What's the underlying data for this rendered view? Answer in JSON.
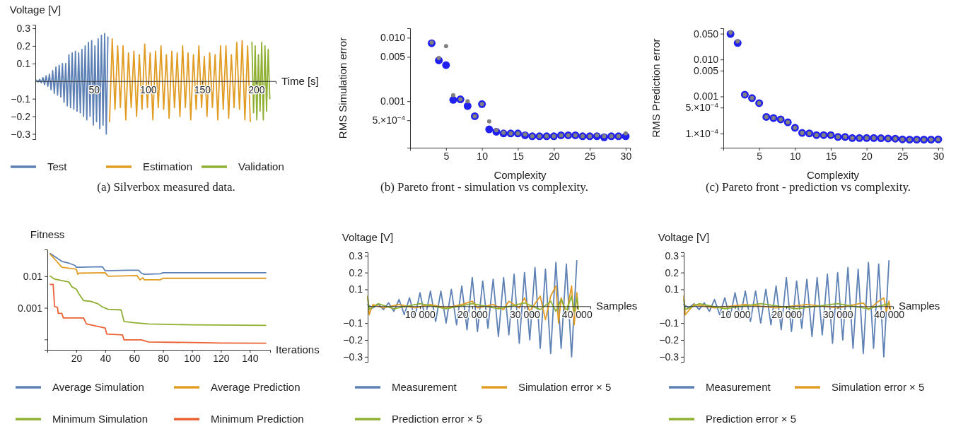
{
  "chart_data": [
    {
      "type": "line",
      "title": "(a) Silverbox measured data.",
      "xlabel": "Time [s]",
      "ylabel": "Voltage [V]",
      "xlim": [
        -4,
        218
      ],
      "xticks": [
        50,
        100,
        150,
        200
      ],
      "ylim": [
        -0.33,
        0.32
      ],
      "yticks": [
        {
          "value": -0.3,
          "label": "−0.3"
        },
        {
          "value": -0.2,
          "label": "−0.2"
        },
        {
          "value": -0.1,
          "label": "−0.1"
        },
        0.1,
        0.2,
        0.3
      ],
      "legend": "bottom",
      "grid": false,
      "series": [
        {
          "name": "Test",
          "color": "#5e81b5",
          "x": [
            -3,
            -1.5,
            0,
            1.5,
            3,
            4.5,
            6,
            7.5,
            9,
            10.5,
            12,
            13.5,
            15,
            16.5,
            18,
            19.5,
            21,
            22.5,
            24,
            25.5,
            27,
            28.5,
            30,
            31.5,
            33,
            34.5,
            36,
            37.5,
            39,
            40.5,
            42,
            43.5,
            45,
            46.5,
            48,
            49.5,
            51,
            52.5,
            54,
            55.5,
            57,
            58.5,
            60,
            61.5,
            63
          ],
          "values": [
            0.005,
            -0.005,
            0.01,
            -0.01,
            0.02,
            -0.02,
            0.03,
            -0.03,
            0.04,
            -0.05,
            0.06,
            -0.07,
            0.08,
            -0.08,
            0.09,
            -0.09,
            0.1,
            -0.12,
            0.1,
            -0.14,
            0.15,
            -0.15,
            0.16,
            -0.16,
            0.17,
            -0.17,
            0.16,
            -0.18,
            0.18,
            -0.2,
            0.2,
            -0.22,
            0.22,
            -0.2,
            0.23,
            -0.25,
            0.2,
            -0.23,
            0.24,
            -0.27,
            0.26,
            -0.25,
            0.27,
            -0.3,
            0.25
          ]
        },
        {
          "name": "Estimation",
          "color": "#e19c24",
          "x": [
            64.5,
            67,
            69.5,
            72,
            74.5,
            77,
            79.5,
            82,
            84.5,
            87,
            89.5,
            92,
            94.5,
            97,
            99.5,
            102,
            104.5,
            107,
            109.5,
            112,
            114.5,
            117,
            119.5,
            122,
            124.5,
            127,
            129.5,
            132,
            134.5,
            137,
            139.5,
            142,
            144.5,
            147,
            149.5,
            152,
            154.5,
            157,
            159.5,
            162,
            164.5,
            167,
            169.5,
            172,
            174.5,
            177,
            179.5,
            182,
            184.5,
            187,
            189.5,
            192,
            194.5
          ],
          "values": [
            -0.23,
            0.24,
            -0.16,
            0.2,
            -0.15,
            0.2,
            -0.22,
            0.16,
            -0.15,
            0.17,
            -0.2,
            0.15,
            -0.16,
            0.21,
            -0.15,
            0.16,
            -0.22,
            0.17,
            -0.15,
            0.2,
            -0.16,
            0.15,
            -0.21,
            0.17,
            -0.15,
            0.16,
            -0.2,
            0.2,
            -0.15,
            0.16,
            -0.22,
            0.15,
            -0.16,
            0.2,
            -0.15,
            0.14,
            -0.2,
            0.16,
            -0.15,
            0.15,
            -0.22,
            0.2,
            -0.16,
            0.2,
            -0.21,
            0.15,
            -0.15,
            0.22,
            -0.16,
            0.23,
            -0.22,
            0.2,
            -0.23
          ]
        },
        {
          "name": "Validation",
          "color": "#8fb032",
          "x": [
            196,
            197.5,
            199,
            200.5,
            202,
            203.5,
            205,
            206.5,
            208,
            209.5,
            211,
            212.5
          ],
          "values": [
            0.22,
            -0.18,
            0.2,
            -0.22,
            0.15,
            -0.17,
            0.22,
            -0.22,
            0.2,
            -0.17,
            0.18,
            -0.1
          ]
        }
      ]
    },
    {
      "type": "scatter",
      "title": "(b) Pareto front - simulation vs complexity.",
      "xlabel": "Complexity",
      "ylabel": "RMS Simulation error",
      "log": "y",
      "marker": "circle",
      "xlim": [
        0,
        30.6
      ],
      "xticks": [
        5,
        10,
        15,
        20,
        25,
        30
      ],
      "ylim": [
        0.000185,
        0.0141
      ],
      "yticks": [
        {
          "value": 0.01,
          "label": "0.010"
        },
        0.005,
        0.001,
        {
          "value": 0.0005,
          "label": "5.×10$^{−4}$"
        }
      ],
      "grid": false,
      "x": [
        3,
        4,
        5,
        6,
        7,
        8,
        9,
        10,
        11,
        12,
        13,
        14,
        15,
        16,
        17,
        18,
        19,
        20,
        21,
        22,
        23,
        24,
        25,
        26,
        27,
        28,
        29,
        30
      ],
      "series": [
        {
          "color": "#2020f0",
          "values": [
            0.0082,
            0.0044,
            0.0037,
            0.00105,
            0.00107,
            0.00084,
            0.00058,
            0.0009,
            0.00036,
            0.00033,
            0.00031,
            0.00031,
            0.00031,
            0.00029,
            0.00028,
            0.00028,
            0.00028,
            0.00028,
            0.00029,
            0.00029,
            0.00029,
            0.00028,
            0.00028,
            0.00028,
            0.00027,
            0.00028,
            0.00028,
            0.00028
          ]
        },
        {
          "color": "#808080",
          "values": [
            0.0084,
            0.0048,
            0.0074,
            0.00124,
            0.00107,
            0.001,
            0.00058,
            0.0009,
            0.00048,
            0.00035,
            0.00032,
            0.00031,
            0.00031,
            0.0003,
            0.00028,
            0.00028,
            0.00028,
            0.00028,
            0.00029,
            0.00029,
            0.00029,
            0.00028,
            0.00028,
            0.00029,
            0.00028,
            0.00028,
            0.00028,
            0.00031
          ]
        }
      ]
    },
    {
      "type": "scatter",
      "title": "(c) Pareto front - prediction vs complexity.",
      "xlabel": "Complexity",
      "ylabel": "RMS Prediction error",
      "log": "y",
      "marker": "circle",
      "xlim": [
        0,
        30.6
      ],
      "xticks": [
        5,
        10,
        15,
        20,
        25,
        30
      ],
      "ylim": [
        4.1e-05,
        0.07
      ],
      "yticks": [
        {
          "value": 0.05,
          "label": "0.050"
        },
        {
          "value": 0.01,
          "label": "0.010"
        },
        0.005,
        0.001,
        {
          "value": 0.0005,
          "label": "5.×10$^{−4}$"
        },
        {
          "value": 0.0001,
          "label": "1.×10$^{−4}$"
        }
      ],
      "grid": false,
      "x": [
        1,
        2,
        3,
        4,
        5,
        6,
        7,
        8,
        9,
        10,
        11,
        12,
        13,
        14,
        15,
        16,
        17,
        18,
        19,
        20,
        21,
        22,
        23,
        24,
        25,
        26,
        27,
        28,
        29,
        30
      ],
      "series": [
        {
          "color": "#2020f0",
          "values": [
            0.049,
            0.028,
            0.00112,
            0.0009,
            0.00066,
            0.00028,
            0.00026,
            0.00024,
            0.0002,
            0.000142,
            0.000103,
            0.0001,
            9e-05,
            9e-05,
            9e-05,
            8e-05,
            8e-05,
            7.5e-05,
            7.5e-05,
            7.5e-05,
            7.5e-05,
            7.4e-05,
            7.3e-05,
            7.2e-05,
            6.9e-05,
            6.8e-05,
            6.8e-05,
            6.8e-05,
            6.8e-05,
            6.9e-05
          ]
        },
        {
          "color": "#808080",
          "values": [
            0.054,
            0.031,
            0.00112,
            0.0009,
            0.00066,
            0.00028,
            0.00026,
            0.00024,
            0.0002,
            0.000142,
            0.000103,
            0.0001,
            9e-05,
            9e-05,
            9e-05,
            8e-05,
            8e-05,
            7.5e-05,
            7.5e-05,
            7.5e-05,
            7.5e-05,
            7.4e-05,
            7.3e-05,
            7.2e-05,
            6.9e-05,
            6.8e-05,
            6.8e-05,
            6.8e-05,
            6.8e-05,
            6.9e-05
          ]
        }
      ]
    },
    {
      "type": "line",
      "xlabel": "Iterations",
      "ylabel": "Fitness",
      "log": "y",
      "xlim": [
        0,
        154
      ],
      "xticks": [
        20,
        40,
        60,
        80,
        100,
        120,
        140
      ],
      "ylim": [
        4.7e-05,
        0.07
      ],
      "yticks": [
        0.01,
        0.001,
        {
          "value": 0.0001,
          "label": null
        }
      ],
      "legend": "bottom",
      "grid": false,
      "series": [
        {
          "name": "Average Simulation",
          "color": "#5e81b5",
          "x": [
            2,
            10,
            15,
            19,
            20,
            22,
            38,
            40,
            55,
            63,
            65,
            67,
            78,
            80,
            151
          ],
          "values": [
            0.052,
            0.0295,
            0.0257,
            0.022,
            0.0192,
            0.0192,
            0.02,
            0.0148,
            0.0154,
            0.0154,
            0.0125,
            0.0115,
            0.0119,
            0.0129,
            0.0129
          ]
        },
        {
          "name": "Average Prediction",
          "color": "#e19c24",
          "x": [
            2,
            5,
            10,
            20,
            21,
            22,
            40,
            42,
            62,
            64,
            66,
            67,
            78,
            80,
            151
          ],
          "values": [
            0.049,
            0.035,
            0.0192,
            0.0167,
            0.0115,
            0.0125,
            0.0129,
            0.01,
            0.0105,
            0.0077,
            0.0089,
            0.0077,
            0.0077,
            0.0086,
            0.0086
          ]
        },
        {
          "name": "Minimum Simulation",
          "color": "#8fb032",
          "x": [
            2,
            5,
            15,
            17,
            20,
            22,
            25,
            30,
            35,
            38,
            42,
            51,
            53,
            60,
            70,
            100,
            151
          ],
          "values": [
            0.01,
            0.0081,
            0.0065,
            0.0046,
            0.0039,
            0.0027,
            0.0017,
            0.0016,
            0.00134,
            0.00107,
            0.0009,
            0.00086,
            0.00037,
            0.00034,
            0.00031,
            0.00029,
            0.00028
          ]
        },
        {
          "name": "Minimum Prediction",
          "color": "#eb6235",
          "x": [
            2,
            4,
            5,
            7,
            7.5,
            10,
            11,
            25,
            27,
            40,
            41,
            52,
            53,
            65,
            70,
            100,
            120,
            151
          ],
          "values": [
            0.0055,
            0.0055,
            0.0011,
            0.00103,
            0.00067,
            0.00067,
            0.00048,
            0.00048,
            0.00031,
            0.00023,
            0.000149,
            0.000139,
            9.7e-05,
            9.7e-05,
            8.3e-05,
            8e-05,
            7.7e-05,
            7.6e-05
          ]
        }
      ]
    },
    {
      "type": "line",
      "xlabel": "Samples",
      "ylabel": "Voltage [V]",
      "xlim": [
        0,
        42600
      ],
      "xticks": [
        {
          "value": 10000,
          "label": "10 000"
        },
        {
          "value": 20000,
          "label": "20 000"
        },
        {
          "value": 30000,
          "label": "30 000"
        },
        {
          "value": 40000,
          "label": "40 000"
        }
      ],
      "ylim": [
        -0.33,
        0.32
      ],
      "yticks": [
        {
          "value": -0.3,
          "label": "−0.3"
        },
        {
          "value": -0.2,
          "label": "−0.2"
        },
        {
          "value": -0.1,
          "label": "−0.1"
        },
        0.1,
        0.2,
        0.3
      ],
      "legend": "bottom",
      "grid": false,
      "series": [
        {
          "name": "Measurement",
          "color": "#5e81b5",
          "x": [
            0,
            1000,
            2000,
            3000,
            4000,
            5000,
            6000,
            7000,
            8000,
            9000,
            10000,
            11000,
            12000,
            13000,
            14000,
            15000,
            16000,
            17000,
            18000,
            19000,
            20000,
            21000,
            22000,
            23000,
            24000,
            25000,
            26000,
            27000,
            28000,
            29000,
            30000,
            31000,
            32000,
            33000,
            34000,
            35000,
            36000,
            37000,
            38000,
            39000,
            40000
          ],
          "values": [
            0.01,
            -0.01,
            0.015,
            -0.02,
            0.02,
            -0.03,
            0.04,
            -0.05,
            0.05,
            -0.07,
            0.08,
            -0.07,
            0.09,
            -0.09,
            0.09,
            -0.1,
            0.1,
            -0.11,
            0.12,
            -0.14,
            0.17,
            -0.15,
            0.15,
            -0.13,
            0.16,
            -0.18,
            0.17,
            -0.17,
            0.19,
            -0.22,
            0.2,
            -0.2,
            0.23,
            -0.25,
            0.22,
            -0.28,
            0.26,
            -0.25,
            0.25,
            -0.3,
            0.27
          ]
        },
        {
          "name": "Simulation error × 5",
          "color": "#e19c24",
          "x": [
            0,
            300,
            1000,
            3000,
            6000,
            9000,
            12000,
            15000,
            18000,
            20000,
            21000,
            24000,
            26000,
            27000,
            29000,
            30000,
            31000,
            33000,
            34000,
            35000,
            36000,
            36500,
            37000,
            38000,
            39000,
            39500,
            40000,
            40300
          ],
          "values": [
            0.06,
            -0.05,
            0.01,
            -0.01,
            0.01,
            -0.01,
            0.01,
            -0.01,
            0.01,
            0.03,
            -0.01,
            0.01,
            -0.02,
            0.03,
            -0.01,
            0.05,
            -0.03,
            0.06,
            -0.08,
            0.06,
            0.12,
            -0.1,
            0.05,
            -0.05,
            0.12,
            -0.11,
            0.08,
            -0.03
          ]
        },
        {
          "name": "Prediction error × 5",
          "color": "#8fb032",
          "x": [
            0,
            300,
            2000,
            5000,
            10000,
            15000,
            20000,
            25000,
            30000,
            33000,
            35000,
            36000,
            37000,
            38000,
            39000,
            39500,
            40000,
            40300
          ],
          "values": [
            0.05,
            -0.02,
            0.015,
            -0.015,
            0.015,
            -0.015,
            0.015,
            -0.015,
            0.02,
            -0.02,
            0.03,
            -0.03,
            0.04,
            -0.03,
            0.06,
            -0.03,
            0.05,
            -0.02
          ]
        }
      ]
    },
    {
      "type": "line",
      "xlabel": "Samples",
      "ylabel": "Voltage [V]",
      "xlim": [
        0,
        40800
      ],
      "xticks": [
        {
          "value": 10000,
          "label": "10 000"
        },
        {
          "value": 20000,
          "label": "20 000"
        },
        {
          "value": 30000,
          "label": "30 000"
        },
        {
          "value": 40000,
          "label": "40 000"
        }
      ],
      "ylim": [
        -0.33,
        0.32
      ],
      "yticks": [
        {
          "value": -0.3,
          "label": "−0.3"
        },
        {
          "value": -0.2,
          "label": "−0.2"
        },
        {
          "value": -0.1,
          "label": "−0.1"
        },
        0.1,
        0.2,
        0.3
      ],
      "legend": "bottom",
      "grid": false,
      "series": [
        {
          "name": "Measurement",
          "color": "#5e81b5",
          "x": [
            0,
            1000,
            2000,
            3000,
            4000,
            5000,
            6000,
            7000,
            8000,
            9000,
            10000,
            11000,
            12000,
            13000,
            14000,
            15000,
            16000,
            17000,
            18000,
            19000,
            20000,
            21000,
            22000,
            23000,
            24000,
            25000,
            26000,
            27000,
            28000,
            29000,
            30000,
            31000,
            32000,
            33000,
            34000,
            35000,
            36000,
            37000,
            38000,
            39000,
            40000
          ],
          "values": [
            0.01,
            -0.01,
            0.015,
            -0.02,
            0.02,
            -0.03,
            0.04,
            -0.05,
            0.05,
            -0.07,
            0.08,
            -0.07,
            0.09,
            -0.09,
            0.09,
            -0.1,
            0.1,
            -0.11,
            0.12,
            -0.14,
            0.17,
            -0.15,
            0.15,
            -0.13,
            0.16,
            -0.18,
            0.17,
            -0.17,
            0.19,
            -0.22,
            0.2,
            -0.2,
            0.23,
            -0.25,
            0.22,
            -0.28,
            0.26,
            -0.25,
            0.25,
            -0.3,
            0.27
          ]
        },
        {
          "name": "Simulation error × 5",
          "color": "#e19c24",
          "x": [
            0,
            300,
            2000,
            6000,
            12000,
            18000,
            24000,
            30000,
            35000,
            36000,
            38000,
            39000,
            39500,
            40000,
            40300
          ],
          "values": [
            0.06,
            -0.05,
            0.01,
            -0.01,
            0.01,
            -0.01,
            0.01,
            -0.01,
            0.02,
            -0.02,
            0.03,
            0.05,
            -0.03,
            0.03,
            -0.02
          ]
        },
        {
          "name": "Prediction error × 5",
          "color": "#8fb032",
          "x": [
            0,
            300,
            3000,
            8000,
            15000,
            22000,
            30000,
            36000,
            40000
          ],
          "values": [
            0.04,
            -0.02,
            0.015,
            -0.015,
            0.015,
            -0.015,
            0.015,
            -0.015,
            0.015
          ]
        }
      ]
    }
  ]
}
